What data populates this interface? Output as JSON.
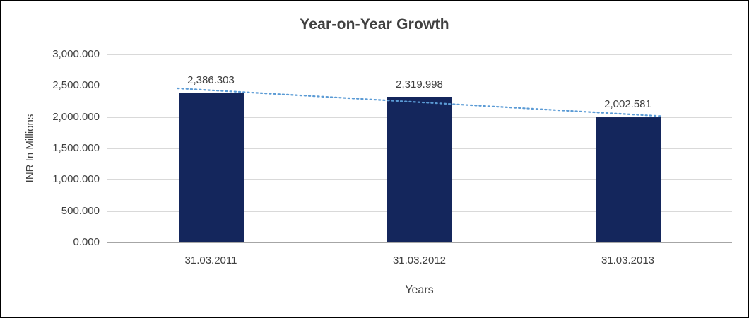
{
  "chart_data": {
    "type": "bar",
    "title": "Year-on-Year Growth",
    "xlabel": "Years",
    "ylabel": "INR In Millions",
    "categories": [
      "31.03.2011",
      "31.03.2012",
      "31.03.2013"
    ],
    "values": [
      2386.303,
      2319.998,
      2002.581
    ],
    "value_labels": [
      "2,386.303",
      "2,319.998",
      "2,002.581"
    ],
    "ylim": [
      0,
      3000
    ],
    "ytick_step": 500,
    "ytick_labels": [
      "0.000",
      "500.000",
      "1,000.000",
      "1,500.000",
      "2,000.000",
      "2,500.000",
      "3,000.000"
    ],
    "grid": true,
    "legend": "none",
    "bar_color": "#14265C",
    "trendline": {
      "type": "linear",
      "style": "dotted",
      "color": "#5B9BD5"
    }
  }
}
